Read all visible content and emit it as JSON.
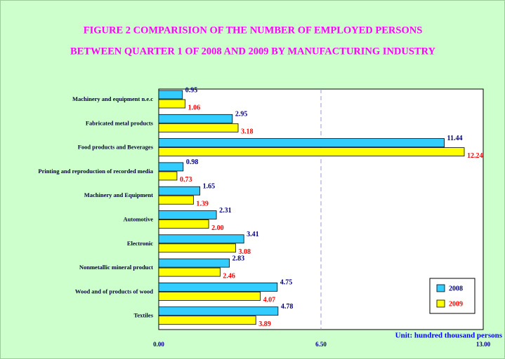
{
  "chart_data": {
    "type": "bar",
    "orientation": "horizontal",
    "title": "FIGURE 2   COMPARISION OF THE  NUMBER OF EMPLOYED PERSONS",
    "subtitle": "BETWEEN QUARTER 1 OF 2008 AND 2009   BY MANUFACTURING INDUSTRY",
    "unit_label": "Unit: hundred thousand persons",
    "categories": [
      "Machinery and equipment n.e.c",
      "Fabricated metal products",
      "Food products and Beverages",
      "Printing and reproduction of recorded media",
      "Machinery and Equipment",
      "Automotive",
      "Electronic",
      "Nonmetallic mineral product",
      "Wood and of products of wood",
      "Textiles"
    ],
    "series": [
      {
        "name": "2008",
        "color": "#33ccff",
        "label_color": "#000080",
        "values": [
          0.95,
          2.95,
          11.44,
          0.98,
          1.65,
          2.31,
          3.41,
          2.83,
          4.75,
          4.78
        ]
      },
      {
        "name": "2009",
        "color": "#ffff00",
        "label_color": "#ff0000",
        "values": [
          1.06,
          3.18,
          12.24,
          0.73,
          1.39,
          2.0,
          3.08,
          2.46,
          4.07,
          3.89
        ],
        "value_labels": [
          "1.06",
          "3.18",
          "12.24",
          "0.73",
          "1.39",
          "2.00",
          "3.08",
          "2.46",
          "4.07",
          "3.89"
        ]
      }
    ],
    "xlim": [
      0,
      13
    ],
    "xticks": [
      {
        "value": 0,
        "label": "0.00"
      },
      {
        "value": 6.5,
        "label": "6.50"
      },
      {
        "value": 13,
        "label": "13.00"
      }
    ],
    "grid": true,
    "legend": "lower right"
  }
}
